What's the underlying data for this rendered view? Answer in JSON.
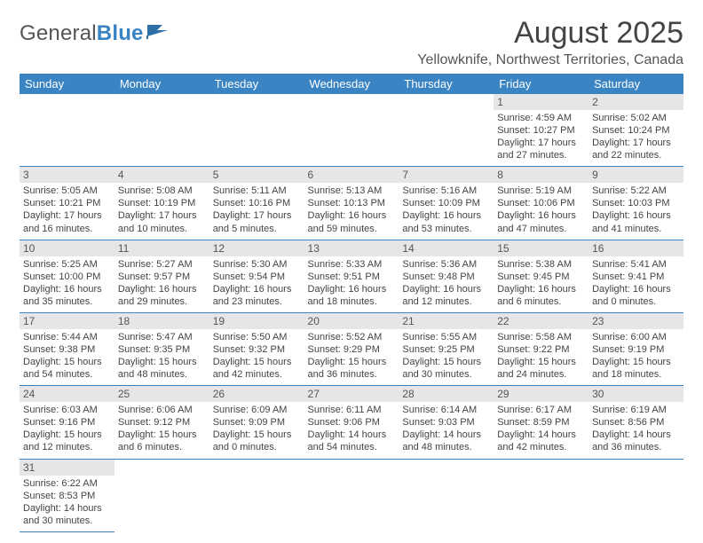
{
  "logo": {
    "word1": "General",
    "word2": "Blue"
  },
  "title": "August 2025",
  "location": "Yellowknife, Northwest Territories, Canada",
  "colors": {
    "header_bg": "#3a84c4",
    "header_text": "#ffffff",
    "daynum_bg": "#e6e6e6",
    "border": "#3a84c4",
    "text": "#444444"
  },
  "day_headers": [
    "Sunday",
    "Monday",
    "Tuesday",
    "Wednesday",
    "Thursday",
    "Friday",
    "Saturday"
  ],
  "weeks": [
    [
      null,
      null,
      null,
      null,
      null,
      {
        "n": "1",
        "sr": "Sunrise: 4:59 AM",
        "ss": "Sunset: 10:27 PM",
        "d1": "Daylight: 17 hours",
        "d2": "and 27 minutes."
      },
      {
        "n": "2",
        "sr": "Sunrise: 5:02 AM",
        "ss": "Sunset: 10:24 PM",
        "d1": "Daylight: 17 hours",
        "d2": "and 22 minutes."
      }
    ],
    [
      {
        "n": "3",
        "sr": "Sunrise: 5:05 AM",
        "ss": "Sunset: 10:21 PM",
        "d1": "Daylight: 17 hours",
        "d2": "and 16 minutes."
      },
      {
        "n": "4",
        "sr": "Sunrise: 5:08 AM",
        "ss": "Sunset: 10:19 PM",
        "d1": "Daylight: 17 hours",
        "d2": "and 10 minutes."
      },
      {
        "n": "5",
        "sr": "Sunrise: 5:11 AM",
        "ss": "Sunset: 10:16 PM",
        "d1": "Daylight: 17 hours",
        "d2": "and 5 minutes."
      },
      {
        "n": "6",
        "sr": "Sunrise: 5:13 AM",
        "ss": "Sunset: 10:13 PM",
        "d1": "Daylight: 16 hours",
        "d2": "and 59 minutes."
      },
      {
        "n": "7",
        "sr": "Sunrise: 5:16 AM",
        "ss": "Sunset: 10:09 PM",
        "d1": "Daylight: 16 hours",
        "d2": "and 53 minutes."
      },
      {
        "n": "8",
        "sr": "Sunrise: 5:19 AM",
        "ss": "Sunset: 10:06 PM",
        "d1": "Daylight: 16 hours",
        "d2": "and 47 minutes."
      },
      {
        "n": "9",
        "sr": "Sunrise: 5:22 AM",
        "ss": "Sunset: 10:03 PM",
        "d1": "Daylight: 16 hours",
        "d2": "and 41 minutes."
      }
    ],
    [
      {
        "n": "10",
        "sr": "Sunrise: 5:25 AM",
        "ss": "Sunset: 10:00 PM",
        "d1": "Daylight: 16 hours",
        "d2": "and 35 minutes."
      },
      {
        "n": "11",
        "sr": "Sunrise: 5:27 AM",
        "ss": "Sunset: 9:57 PM",
        "d1": "Daylight: 16 hours",
        "d2": "and 29 minutes."
      },
      {
        "n": "12",
        "sr": "Sunrise: 5:30 AM",
        "ss": "Sunset: 9:54 PM",
        "d1": "Daylight: 16 hours",
        "d2": "and 23 minutes."
      },
      {
        "n": "13",
        "sr": "Sunrise: 5:33 AM",
        "ss": "Sunset: 9:51 PM",
        "d1": "Daylight: 16 hours",
        "d2": "and 18 minutes."
      },
      {
        "n": "14",
        "sr": "Sunrise: 5:36 AM",
        "ss": "Sunset: 9:48 PM",
        "d1": "Daylight: 16 hours",
        "d2": "and 12 minutes."
      },
      {
        "n": "15",
        "sr": "Sunrise: 5:38 AM",
        "ss": "Sunset: 9:45 PM",
        "d1": "Daylight: 16 hours",
        "d2": "and 6 minutes."
      },
      {
        "n": "16",
        "sr": "Sunrise: 5:41 AM",
        "ss": "Sunset: 9:41 PM",
        "d1": "Daylight: 16 hours",
        "d2": "and 0 minutes."
      }
    ],
    [
      {
        "n": "17",
        "sr": "Sunrise: 5:44 AM",
        "ss": "Sunset: 9:38 PM",
        "d1": "Daylight: 15 hours",
        "d2": "and 54 minutes."
      },
      {
        "n": "18",
        "sr": "Sunrise: 5:47 AM",
        "ss": "Sunset: 9:35 PM",
        "d1": "Daylight: 15 hours",
        "d2": "and 48 minutes."
      },
      {
        "n": "19",
        "sr": "Sunrise: 5:50 AM",
        "ss": "Sunset: 9:32 PM",
        "d1": "Daylight: 15 hours",
        "d2": "and 42 minutes."
      },
      {
        "n": "20",
        "sr": "Sunrise: 5:52 AM",
        "ss": "Sunset: 9:29 PM",
        "d1": "Daylight: 15 hours",
        "d2": "and 36 minutes."
      },
      {
        "n": "21",
        "sr": "Sunrise: 5:55 AM",
        "ss": "Sunset: 9:25 PM",
        "d1": "Daylight: 15 hours",
        "d2": "and 30 minutes."
      },
      {
        "n": "22",
        "sr": "Sunrise: 5:58 AM",
        "ss": "Sunset: 9:22 PM",
        "d1": "Daylight: 15 hours",
        "d2": "and 24 minutes."
      },
      {
        "n": "23",
        "sr": "Sunrise: 6:00 AM",
        "ss": "Sunset: 9:19 PM",
        "d1": "Daylight: 15 hours",
        "d2": "and 18 minutes."
      }
    ],
    [
      {
        "n": "24",
        "sr": "Sunrise: 6:03 AM",
        "ss": "Sunset: 9:16 PM",
        "d1": "Daylight: 15 hours",
        "d2": "and 12 minutes."
      },
      {
        "n": "25",
        "sr": "Sunrise: 6:06 AM",
        "ss": "Sunset: 9:12 PM",
        "d1": "Daylight: 15 hours",
        "d2": "and 6 minutes."
      },
      {
        "n": "26",
        "sr": "Sunrise: 6:09 AM",
        "ss": "Sunset: 9:09 PM",
        "d1": "Daylight: 15 hours",
        "d2": "and 0 minutes."
      },
      {
        "n": "27",
        "sr": "Sunrise: 6:11 AM",
        "ss": "Sunset: 9:06 PM",
        "d1": "Daylight: 14 hours",
        "d2": "and 54 minutes."
      },
      {
        "n": "28",
        "sr": "Sunrise: 6:14 AM",
        "ss": "Sunset: 9:03 PM",
        "d1": "Daylight: 14 hours",
        "d2": "and 48 minutes."
      },
      {
        "n": "29",
        "sr": "Sunrise: 6:17 AM",
        "ss": "Sunset: 8:59 PM",
        "d1": "Daylight: 14 hours",
        "d2": "and 42 minutes."
      },
      {
        "n": "30",
        "sr": "Sunrise: 6:19 AM",
        "ss": "Sunset: 8:56 PM",
        "d1": "Daylight: 14 hours",
        "d2": "and 36 minutes."
      }
    ],
    [
      {
        "n": "31",
        "sr": "Sunrise: 6:22 AM",
        "ss": "Sunset: 8:53 PM",
        "d1": "Daylight: 14 hours",
        "d2": "and 30 minutes."
      },
      null,
      null,
      null,
      null,
      null,
      null
    ]
  ]
}
